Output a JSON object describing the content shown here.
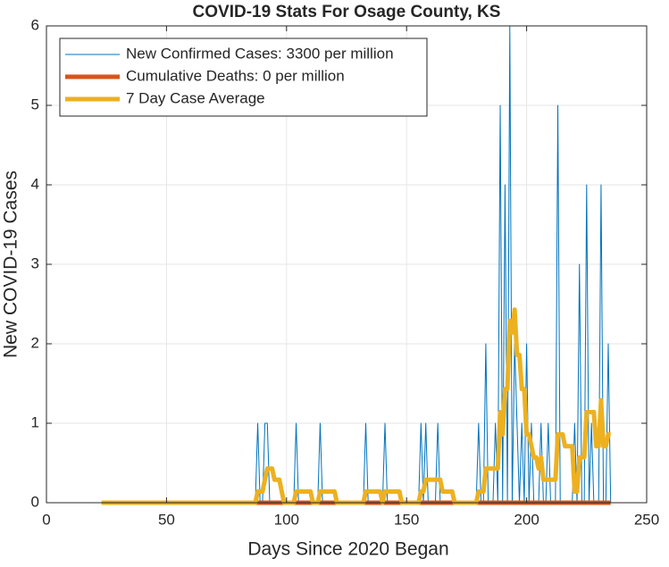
{
  "chart_data": {
    "type": "line",
    "title": "COVID-19 Stats For Osage County, KS",
    "xlabel": "Days Since 2020 Began",
    "ylabel": "New COVID-19 Cases",
    "xlim": [
      0,
      250
    ],
    "xticks": [
      0,
      50,
      100,
      150,
      200,
      250
    ],
    "ylim": [
      0,
      6
    ],
    "yticks": [
      0,
      1,
      2,
      3,
      4,
      5,
      6
    ],
    "grid": true,
    "legend": "upper-left",
    "x": [
      23,
      24,
      25,
      26,
      27,
      28,
      29,
      30,
      31,
      32,
      33,
      34,
      35,
      36,
      37,
      38,
      39,
      40,
      41,
      42,
      43,
      44,
      45,
      46,
      47,
      48,
      49,
      50,
      51,
      52,
      53,
      54,
      55,
      56,
      57,
      58,
      59,
      60,
      61,
      62,
      63,
      64,
      65,
      66,
      67,
      68,
      69,
      70,
      71,
      72,
      73,
      74,
      75,
      76,
      77,
      78,
      79,
      80,
      81,
      82,
      83,
      84,
      85,
      86,
      87,
      88,
      89,
      90,
      91,
      92,
      93,
      94,
      95,
      96,
      97,
      98,
      99,
      100,
      101,
      102,
      103,
      104,
      105,
      106,
      107,
      108,
      109,
      110,
      111,
      112,
      113,
      114,
      115,
      116,
      117,
      118,
      119,
      120,
      121,
      122,
      123,
      124,
      125,
      126,
      127,
      128,
      129,
      130,
      131,
      132,
      133,
      134,
      135,
      136,
      137,
      138,
      139,
      140,
      141,
      142,
      143,
      144,
      145,
      146,
      147,
      148,
      149,
      150,
      151,
      152,
      153,
      154,
      155,
      156,
      157,
      158,
      159,
      160,
      161,
      162,
      163,
      164,
      165,
      166,
      167,
      168,
      169,
      170,
      171,
      172,
      173,
      174,
      175,
      176,
      177,
      178,
      179,
      180,
      181,
      182,
      183,
      184,
      185,
      186,
      187,
      188,
      189,
      190,
      191,
      192,
      193,
      194,
      195,
      196,
      197,
      198,
      199,
      200,
      201,
      202,
      203,
      204,
      205,
      206,
      207,
      208,
      209,
      210,
      211,
      212,
      213,
      214,
      215,
      216,
      217,
      218,
      219,
      220,
      221,
      222,
      223,
      224,
      225,
      226,
      227,
      228,
      229,
      230,
      231,
      232,
      233,
      234,
      235
    ],
    "series": [
      {
        "name": "New Confirmed Cases: 3300 per million",
        "color": "#0072BD",
        "width": 1,
        "values": [
          0,
          0,
          0,
          0,
          0,
          0,
          0,
          0,
          0,
          0,
          0,
          0,
          0,
          0,
          0,
          0,
          0,
          0,
          0,
          0,
          0,
          0,
          0,
          0,
          0,
          0,
          0,
          0,
          0,
          0,
          0,
          0,
          0,
          0,
          0,
          0,
          0,
          0,
          0,
          0,
          0,
          0,
          0,
          0,
          0,
          0,
          0,
          0,
          0,
          0,
          0,
          0,
          0,
          0,
          0,
          0,
          0,
          0,
          0,
          0,
          0,
          0,
          0,
          0,
          0,
          1,
          0,
          0,
          1,
          1,
          0,
          0,
          0,
          0,
          0,
          0,
          0,
          0,
          0,
          0,
          0,
          1,
          0,
          0,
          0,
          0,
          0,
          0,
          0,
          0,
          0,
          1,
          0,
          0,
          0,
          0,
          0,
          0,
          0,
          0,
          0,
          0,
          0,
          0,
          0,
          0,
          0,
          0,
          0,
          0,
          1,
          0,
          0,
          0,
          0,
          0,
          0,
          0,
          1,
          0,
          0,
          0,
          0,
          0,
          0,
          0,
          0,
          0,
          0,
          0,
          0,
          0,
          0,
          1,
          0,
          1,
          0,
          0,
          0,
          0,
          1,
          0,
          0,
          0,
          0,
          0,
          0,
          0,
          0,
          0,
          0,
          0,
          0,
          0,
          0,
          0,
          0,
          1,
          0,
          0,
          2,
          0,
          0,
          0,
          1,
          0,
          5,
          0,
          4,
          0,
          6,
          0,
          2,
          1,
          0,
          1,
          0,
          2,
          0,
          1,
          0,
          0,
          0,
          1,
          0,
          0,
          1,
          0,
          0,
          0,
          5,
          0,
          0,
          0,
          0,
          0,
          0,
          1,
          0,
          3,
          0,
          0,
          4,
          0,
          1,
          0,
          0,
          0,
          4,
          0,
          0,
          2,
          0
        ]
      },
      {
        "name": "Cumulative Deaths: 0 per million",
        "color": "#D95319",
        "width": 5,
        "values": [
          0,
          0,
          0,
          0,
          0,
          0,
          0,
          0,
          0,
          0,
          0,
          0,
          0,
          0,
          0,
          0,
          0,
          0,
          0,
          0,
          0,
          0,
          0,
          0,
          0,
          0,
          0,
          0,
          0,
          0,
          0,
          0,
          0,
          0,
          0,
          0,
          0,
          0,
          0,
          0,
          0,
          0,
          0,
          0,
          0,
          0,
          0,
          0,
          0,
          0,
          0,
          0,
          0,
          0,
          0,
          0,
          0,
          0,
          0,
          0,
          0,
          0,
          0,
          0,
          0,
          0,
          0,
          0,
          0,
          0,
          0,
          0,
          0,
          0,
          0,
          0,
          0,
          0,
          0,
          0,
          0,
          0,
          0,
          0,
          0,
          0,
          0,
          0,
          0,
          0,
          0,
          0,
          0,
          0,
          0,
          0,
          0,
          0,
          0,
          0,
          0,
          0,
          0,
          0,
          0,
          0,
          0,
          0,
          0,
          0,
          0,
          0,
          0,
          0,
          0,
          0,
          0,
          0,
          0,
          0,
          0,
          0,
          0,
          0,
          0,
          0,
          0,
          0,
          0,
          0,
          0,
          0,
          0,
          0,
          0,
          0,
          0,
          0,
          0,
          0,
          0,
          0,
          0,
          0,
          0,
          0,
          0,
          0,
          0,
          0,
          0,
          0,
          0,
          0,
          0,
          0,
          0,
          0,
          0,
          0,
          0,
          0,
          0,
          0,
          0,
          0,
          0,
          0,
          0,
          0,
          0,
          0,
          0,
          0,
          0,
          0,
          0,
          0,
          0,
          0,
          0,
          0,
          0,
          0,
          0,
          0,
          0,
          0,
          0,
          0,
          0,
          0,
          0,
          0,
          0,
          0,
          0,
          0,
          0,
          0,
          0,
          0,
          0,
          0,
          0,
          0,
          0,
          0,
          0,
          0,
          0,
          0,
          0
        ]
      },
      {
        "name": "7 Day Case Average",
        "color": "#EDB120",
        "width": 5,
        "values": [
          0,
          0,
          0,
          0,
          0,
          0,
          0,
          0,
          0,
          0,
          0,
          0,
          0,
          0,
          0,
          0,
          0,
          0,
          0,
          0,
          0,
          0,
          0,
          0,
          0,
          0,
          0,
          0,
          0,
          0,
          0,
          0,
          0,
          0,
          0,
          0,
          0,
          0,
          0,
          0,
          0,
          0,
          0,
          0,
          0,
          0,
          0,
          0,
          0,
          0,
          0,
          0,
          0,
          0,
          0,
          0,
          0,
          0,
          0,
          0,
          0,
          0,
          0,
          0,
          0,
          0.14,
          0.14,
          0.14,
          0.29,
          0.43,
          0.43,
          0.43,
          0.29,
          0.29,
          0.29,
          0.14,
          0,
          0,
          0,
          0,
          0,
          0.14,
          0.14,
          0.14,
          0.14,
          0.14,
          0.14,
          0.14,
          0,
          0,
          0,
          0.14,
          0.14,
          0.14,
          0.14,
          0.14,
          0.14,
          0.14,
          0,
          0,
          0,
          0,
          0,
          0,
          0,
          0,
          0,
          0,
          0,
          0,
          0.14,
          0.14,
          0.14,
          0.14,
          0.14,
          0.14,
          0.14,
          0,
          0.14,
          0.14,
          0.14,
          0.14,
          0.14,
          0.14,
          0.14,
          0,
          0,
          0,
          0,
          0,
          0,
          0,
          0,
          0.14,
          0.14,
          0.29,
          0.29,
          0.29,
          0.29,
          0.29,
          0.29,
          0.29,
          0.14,
          0.14,
          0.14,
          0.14,
          0.14,
          0,
          0,
          0,
          0,
          0,
          0,
          0,
          0,
          0,
          0,
          0.14,
          0.14,
          0.14,
          0.43,
          0.43,
          0.43,
          0.43,
          0.43,
          0.43,
          1.14,
          0.86,
          1.43,
          1.43,
          2.29,
          2.14,
          2.43,
          1.86,
          1.86,
          1.43,
          1.43,
          0.86,
          0.86,
          0.71,
          0.57,
          0.57,
          0.43,
          0.57,
          0.29,
          0.29,
          0.29,
          0.29,
          0.29,
          0.29,
          0.86,
          0.86,
          0.86,
          0.71,
          0.71,
          0.71,
          0.71,
          0.14,
          0.14,
          0.57,
          0.57,
          0.57,
          1.14,
          1.14,
          1.14,
          1.14,
          0.71,
          0.71,
          1.29,
          0.71,
          0.71,
          0.86,
          0.86
        ]
      }
    ]
  }
}
